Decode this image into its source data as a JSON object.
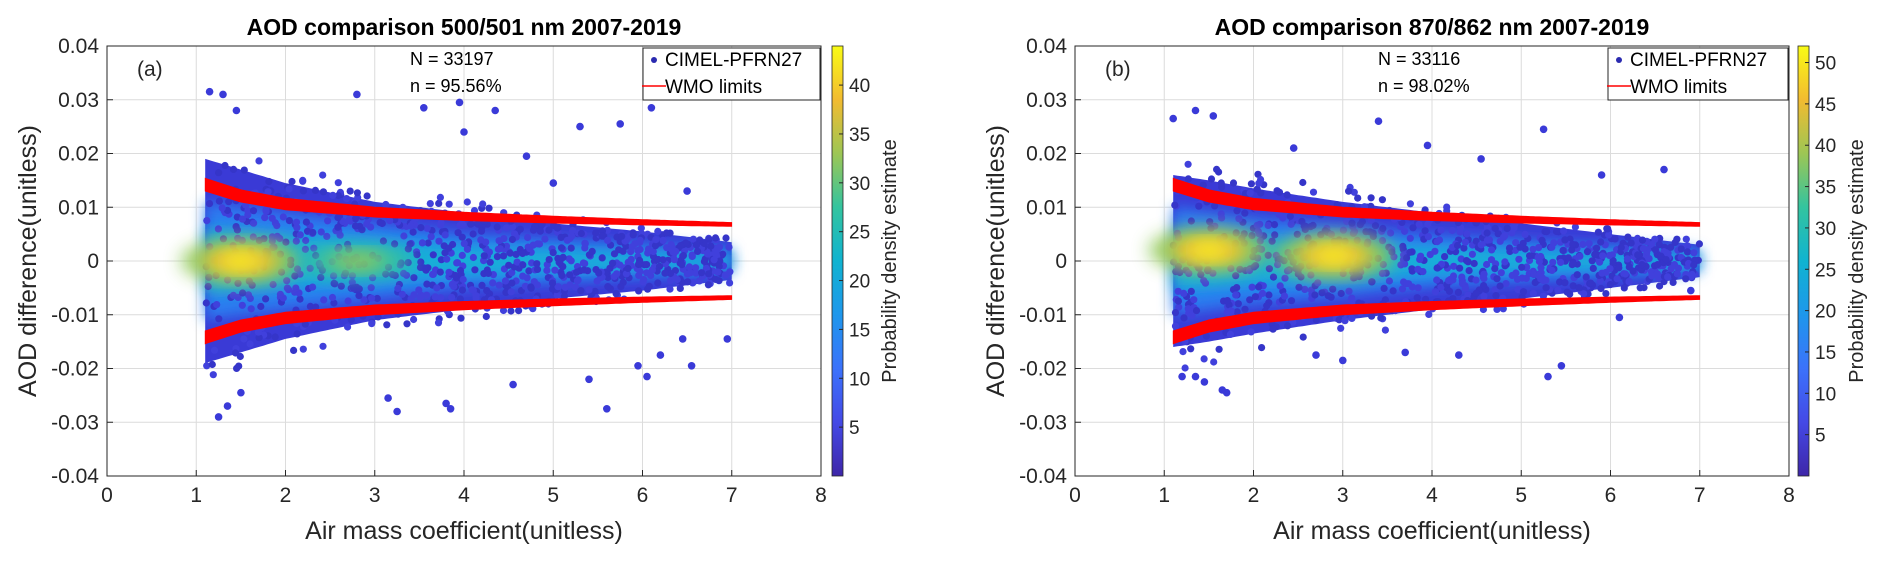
{
  "figure": "AOD comparison scatter density plots",
  "chart_data": [
    {
      "type": "scatter",
      "panel_label": "(a)",
      "title": "AOD comparison 500/501 nm 2007-2019",
      "xlabel": "Air mass coefficient(unitless)",
      "ylabel": "AOD difference(unitless)",
      "xlim": [
        0,
        8
      ],
      "ylim": [
        -0.04,
        0.04
      ],
      "xticks": [
        0,
        1,
        2,
        3,
        4,
        5,
        6,
        7,
        8
      ],
      "xtick_labels": [
        "0",
        "1",
        "2",
        "3",
        "4",
        "5",
        "6",
        "7",
        "8"
      ],
      "yticks": [
        -0.04,
        -0.03,
        -0.02,
        -0.01,
        0,
        0.01,
        0.02,
        0.03,
        0.04
      ],
      "ytick_labels": [
        "-0.04",
        "-0.03",
        "-0.02",
        "-0.01",
        "0",
        "0.01",
        "0.02",
        "0.03",
        "0.04"
      ],
      "grid": true,
      "annotation_N": "N = 33197",
      "annotation_n": "n = 95.56%",
      "legend": {
        "position": "top-right",
        "entries": [
          {
            "label": "CIMEL-PFRN27",
            "marker": "dot",
            "color": "#2a2ab0"
          },
          {
            "label": "WMO limits",
            "marker": "line",
            "color": "#ff0000"
          }
        ]
      },
      "wmo_limits": {
        "x_range": [
          1.1,
          7.0
        ],
        "upper": [
          [
            1.1,
            0.0142
          ],
          [
            1.5,
            0.0121
          ],
          [
            2,
            0.0106
          ],
          [
            3,
            0.0091
          ],
          [
            4,
            0.0083
          ],
          [
            5,
            0.0077
          ],
          [
            6,
            0.0072
          ],
          [
            7,
            0.0068
          ]
        ],
        "lower": [
          [
            1.1,
            -0.0142
          ],
          [
            1.5,
            -0.0121
          ],
          [
            2,
            -0.0106
          ],
          [
            3,
            -0.0091
          ],
          [
            4,
            -0.0083
          ],
          [
            5,
            -0.0077
          ],
          [
            6,
            -0.0072
          ],
          [
            7,
            -0.0068
          ]
        ],
        "thickness": 0.0012
      },
      "density": {
        "x_range": [
          1.1,
          7.0
        ],
        "spread": [
          [
            1.1,
            0.019
          ],
          [
            1.5,
            0.017
          ],
          [
            2,
            0.0145
          ],
          [
            3,
            0.011
          ],
          [
            4,
            0.009
          ],
          [
            5,
            0.007
          ],
          [
            6,
            0.0055
          ],
          [
            7,
            0.0035
          ]
        ],
        "core_halfwidth": [
          [
            1.1,
            0.011
          ],
          [
            2,
            0.009
          ],
          [
            3,
            0.007
          ],
          [
            4,
            0.005
          ],
          [
            5,
            0.004
          ],
          [
            6,
            0.003
          ],
          [
            7,
            0.0022
          ]
        ],
        "hotspots": [
          {
            "x": 1.5,
            "y": 0.0,
            "level": "high"
          },
          {
            "x": 2.8,
            "y": 0.0,
            "level": "mid"
          }
        ]
      },
      "outliers": [
        [
          1.15,
          0.0315
        ],
        [
          1.3,
          0.031
        ],
        [
          1.45,
          0.028
        ],
        [
          2.8,
          0.031
        ],
        [
          3.55,
          0.0285
        ],
        [
          3.95,
          0.0295
        ],
        [
          4.35,
          0.028
        ],
        [
          5.3,
          0.025
        ],
        [
          5.75,
          0.0255
        ],
        [
          6.1,
          0.0285
        ],
        [
          4.0,
          0.024
        ],
        [
          4.7,
          0.0195
        ],
        [
          5.0,
          0.0145
        ],
        [
          6.5,
          0.013
        ],
        [
          1.25,
          -0.029
        ],
        [
          1.35,
          -0.027
        ],
        [
          1.5,
          -0.0245
        ],
        [
          3.15,
          -0.0255
        ],
        [
          3.25,
          -0.028
        ],
        [
          3.8,
          -0.0265
        ],
        [
          3.85,
          -0.0275
        ],
        [
          4.55,
          -0.023
        ],
        [
          5.6,
          -0.0275
        ],
        [
          6.05,
          -0.0215
        ],
        [
          5.95,
          -0.0195
        ],
        [
          6.55,
          -0.0195
        ],
        [
          6.95,
          -0.0145
        ],
        [
          6.2,
          -0.0175
        ],
        [
          6.45,
          -0.0145
        ],
        [
          5.4,
          -0.022
        ]
      ],
      "colorbar": {
        "label": "Probability density estimate",
        "range": [
          0,
          44
        ],
        "ticks": [
          5,
          10,
          15,
          20,
          25,
          30,
          35,
          40
        ],
        "tick_labels": [
          "5",
          "10",
          "15",
          "20",
          "25",
          "30",
          "35",
          "40"
        ]
      }
    },
    {
      "type": "scatter",
      "panel_label": "(b)",
      "title": "AOD comparison 870/862 nm 2007-2019",
      "xlabel": "Air mass coefficient(unitless)",
      "ylabel": "AOD difference(unitless)",
      "xlim": [
        0,
        8
      ],
      "ylim": [
        -0.04,
        0.04
      ],
      "xticks": [
        0,
        1,
        2,
        3,
        4,
        5,
        6,
        7,
        8
      ],
      "xtick_labels": [
        "0",
        "1",
        "2",
        "3",
        "4",
        "5",
        "6",
        "7",
        "8"
      ],
      "yticks": [
        -0.04,
        -0.03,
        -0.02,
        -0.01,
        0,
        0.01,
        0.02,
        0.03,
        0.04
      ],
      "ytick_labels": [
        "-0.04",
        "-0.03",
        "-0.02",
        "-0.01",
        "0",
        "0.01",
        "0.02",
        "0.03",
        "0.04"
      ],
      "grid": true,
      "annotation_N": "N = 33116",
      "annotation_n": "n = 98.02%",
      "legend": {
        "position": "top-right",
        "entries": [
          {
            "label": "CIMEL-PFRN27",
            "marker": "dot",
            "color": "#2a2ab0"
          },
          {
            "label": "WMO limits",
            "marker": "line",
            "color": "#ff0000"
          }
        ]
      },
      "wmo_limits": {
        "x_range": [
          1.1,
          7.0
        ],
        "upper": [
          [
            1.1,
            0.0142
          ],
          [
            1.5,
            0.0121
          ],
          [
            2,
            0.0106
          ],
          [
            3,
            0.0091
          ],
          [
            4,
            0.0083
          ],
          [
            5,
            0.0077
          ],
          [
            6,
            0.0072
          ],
          [
            7,
            0.0068
          ]
        ],
        "lower": [
          [
            1.1,
            -0.0142
          ],
          [
            1.5,
            -0.0121
          ],
          [
            2,
            -0.0106
          ],
          [
            3,
            -0.0091
          ],
          [
            4,
            -0.0083
          ],
          [
            5,
            -0.0077
          ],
          [
            6,
            -0.0072
          ],
          [
            7,
            -0.0068
          ]
        ],
        "thickness": 0.0012
      },
      "density": {
        "x_range": [
          1.1,
          7.0
        ],
        "spread": [
          [
            1.1,
            0.016
          ],
          [
            1.5,
            0.015
          ],
          [
            2,
            0.0135
          ],
          [
            3,
            0.011
          ],
          [
            4,
            0.009
          ],
          [
            5,
            0.007
          ],
          [
            6,
            0.005
          ],
          [
            7,
            0.003
          ]
        ],
        "core_halfwidth": [
          [
            1.1,
            0.01
          ],
          [
            2,
            0.008
          ],
          [
            3,
            0.0065
          ],
          [
            4,
            0.0048
          ],
          [
            5,
            0.0038
          ],
          [
            6,
            0.0028
          ],
          [
            7,
            0.002
          ]
        ],
        "hotspots": [
          {
            "x": 1.5,
            "y": 0.002,
            "level": "high"
          },
          {
            "x": 2.9,
            "y": 0.001,
            "level": "high"
          }
        ]
      },
      "outliers": [
        [
          1.1,
          0.0265
        ],
        [
          1.35,
          0.028
        ],
        [
          1.55,
          0.027
        ],
        [
          3.4,
          0.026
        ],
        [
          5.25,
          0.0245
        ],
        [
          2.45,
          0.021
        ],
        [
          3.95,
          0.0215
        ],
        [
          4.55,
          0.019
        ],
        [
          6.6,
          0.017
        ],
        [
          5.9,
          0.016
        ],
        [
          1.2,
          -0.0215
        ],
        [
          1.45,
          -0.0225
        ],
        [
          1.7,
          -0.0245
        ],
        [
          1.65,
          -0.024
        ],
        [
          1.35,
          -0.0215
        ],
        [
          3.0,
          -0.0185
        ],
        [
          4.3,
          -0.0175
        ],
        [
          5.3,
          -0.0215
        ],
        [
          5.45,
          -0.0195
        ],
        [
          6.1,
          -0.0105
        ],
        [
          6.9,
          -0.0055
        ],
        [
          3.7,
          -0.017
        ],
        [
          2.7,
          -0.0175
        ]
      ],
      "colorbar": {
        "label": "Probability density estimate",
        "range": [
          0,
          52
        ],
        "ticks": [
          5,
          10,
          15,
          20,
          25,
          30,
          35,
          40,
          45,
          50
        ],
        "tick_labels": [
          "5",
          "10",
          "15",
          "20",
          "25",
          "30",
          "35",
          "40",
          "45",
          "50"
        ]
      }
    }
  ]
}
